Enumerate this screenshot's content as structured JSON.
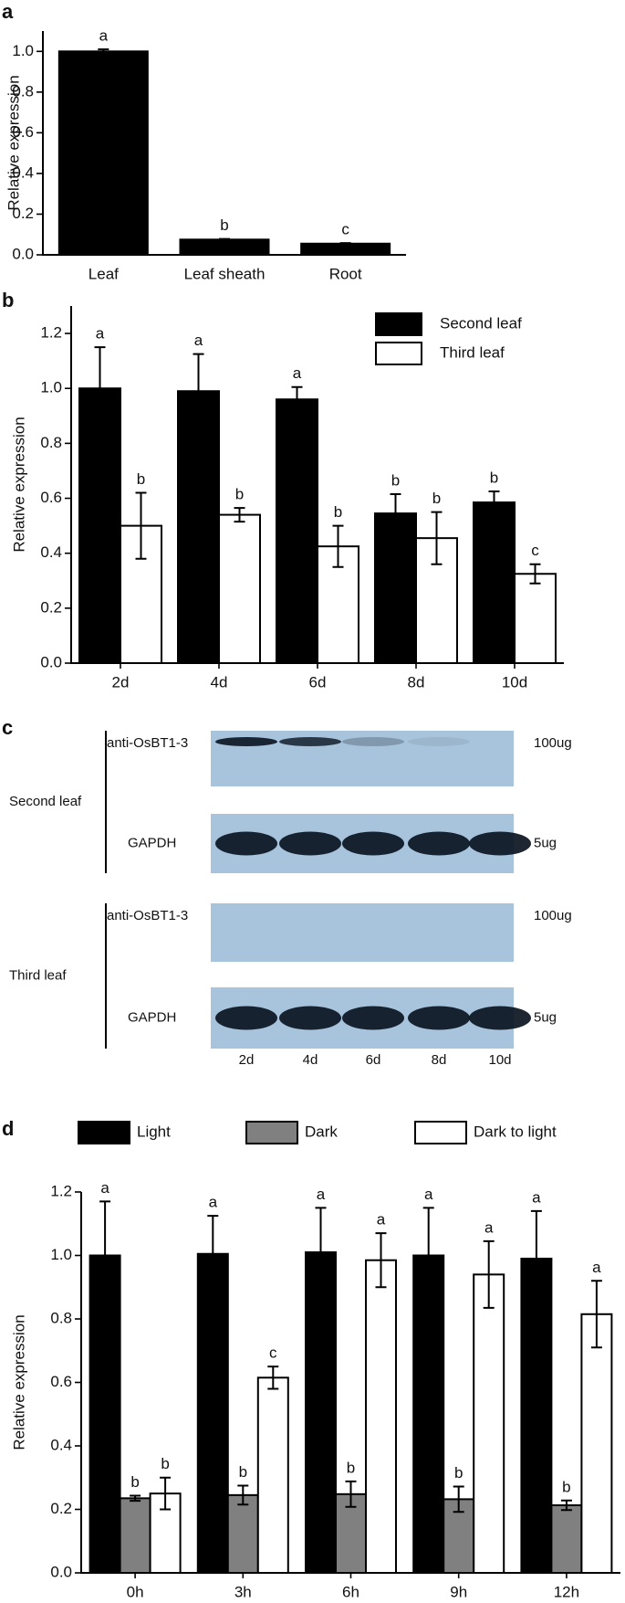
{
  "chart_data": [
    {
      "type": "bar",
      "panel": "a",
      "y_label": "Relative expression",
      "categories": [
        "Leaf",
        "Leaf sheath",
        "Root"
      ],
      "values": [
        1.0,
        0.075,
        0.055
      ],
      "errors": [
        0.01,
        0.003,
        0.003
      ],
      "letters": [
        "a",
        "b",
        "c"
      ],
      "color": "#000000",
      "ylim": [
        0,
        1.1
      ],
      "yticks": [
        {
          "value": 0,
          "label": "0.0"
        },
        0.2,
        0.4,
        0.6,
        0.8,
        {
          "value": 1,
          "label": "1.0"
        }
      ]
    },
    {
      "type": "bar",
      "panel": "b",
      "y_label": "Relative expression",
      "categories": [
        "2d",
        "4d",
        "6d",
        "8d",
        "10d"
      ],
      "series": [
        {
          "name": "Second leaf",
          "color": "#000000",
          "values": [
            1.0,
            0.99,
            0.96,
            0.545,
            0.585
          ],
          "errors": [
            0.15,
            0.135,
            0.045,
            0.07,
            0.04
          ],
          "letters": [
            "a",
            "a",
            "a",
            "b",
            "b"
          ]
        },
        {
          "name": "Third leaf",
          "color": "#ffffff",
          "values": [
            0.5,
            0.54,
            0.425,
            0.455,
            0.325
          ],
          "errors": [
            0.12,
            0.025,
            0.075,
            0.095,
            0.035
          ],
          "letters": [
            "b",
            "b",
            "b",
            "b",
            "c"
          ]
        }
      ],
      "ylim": [
        0,
        1.3
      ],
      "yticks": [
        {
          "value": 0,
          "label": "0.0"
        },
        0.2,
        0.4,
        0.6,
        0.8,
        {
          "value": 1,
          "label": "1.0"
        },
        1.2
      ],
      "legend": "top-right"
    },
    {
      "type": "bar",
      "panel": "d",
      "y_label": "Relative expression",
      "categories": [
        "0h",
        "3h",
        "6h",
        "9h",
        "12h"
      ],
      "series": [
        {
          "name": "Light",
          "color": "#000000",
          "values": [
            1.0,
            1.005,
            1.01,
            1.0,
            0.99
          ],
          "errors": [
            0.17,
            0.12,
            0.14,
            0.15,
            0.15
          ],
          "letters": [
            "a",
            "a",
            "a",
            "a",
            "a"
          ]
        },
        {
          "name": "Dark",
          "color": "#808080",
          "values": [
            0.235,
            0.245,
            0.248,
            0.232,
            0.213
          ],
          "errors": [
            0.008,
            0.03,
            0.04,
            0.04,
            0.015
          ],
          "letters": [
            "b",
            "b",
            "b",
            "b",
            "b"
          ]
        },
        {
          "name": "Dark to light",
          "color": "#ffffff",
          "values": [
            0.25,
            0.615,
            0.985,
            0.94,
            0.815
          ],
          "errors": [
            0.05,
            0.035,
            0.085,
            0.105,
            0.105
          ],
          "letters": [
            "b",
            "c",
            "a",
            "a",
            "a"
          ]
        }
      ],
      "ylim": [
        0,
        1.2
      ],
      "yticks": [
        {
          "value": 0,
          "label": "0.0"
        },
        0.2,
        0.4,
        0.6,
        0.8,
        {
          "value": 1,
          "label": "1.0"
        },
        1.2
      ],
      "legend": "top"
    }
  ],
  "blot": {
    "panel": "c",
    "groups": [
      {
        "name": "Second leaf",
        "rows": [
          {
            "antibody": "anti-OsBT1-3",
            "amount": "100ug"
          },
          {
            "antibody": "GAPDH",
            "amount": "5ug"
          }
        ]
      },
      {
        "name": "Third leaf",
        "rows": [
          {
            "antibody": "anti-OsBT1-3",
            "amount": "100ug"
          },
          {
            "antibody": "GAPDH",
            "amount": "5ug"
          }
        ]
      }
    ],
    "lanes": [
      "2d",
      "4d",
      "6d",
      "8d",
      "10d"
    ]
  }
}
